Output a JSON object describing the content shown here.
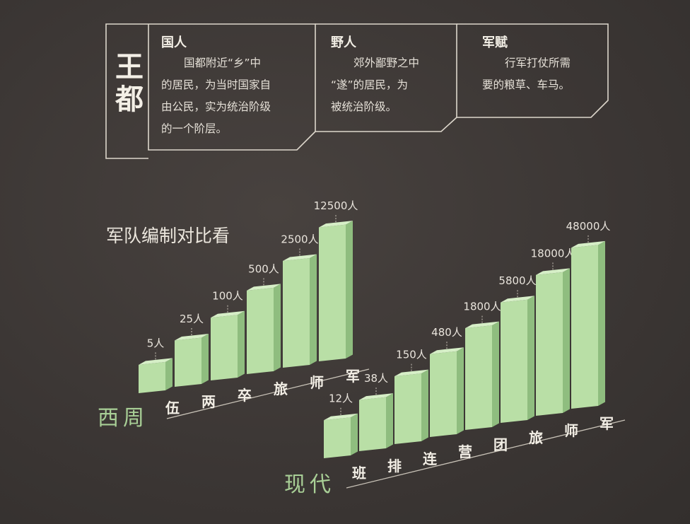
{
  "header": {
    "title_chars": [
      "王",
      "都"
    ],
    "sections": [
      {
        "head": "国人",
        "lines": [
          "国都附近“乡”中",
          "的居民，为当时国家自",
          "由公民，实为统治阶级",
          "的一个阶层。"
        ]
      },
      {
        "head": "野人",
        "lines": [
          "郊外鄙野之中",
          "“遂”的居民，为",
          "被统治阶级。"
        ]
      },
      {
        "head": "军赋",
        "lines": [
          "行军打仗所需",
          "要的粮草、车马。"
        ]
      }
    ]
  },
  "chart_data": [
    {
      "type": "bar",
      "title": "军队编制对比看",
      "series_label": "西周",
      "categories": [
        "伍",
        "两",
        "卒",
        "旅",
        "师",
        "军"
      ],
      "values": [
        5,
        25,
        100,
        500,
        2500,
        12500
      ],
      "value_labels": [
        "5人",
        "25人",
        "100人",
        "500人",
        "2500人",
        "12500人"
      ],
      "unit": "人"
    },
    {
      "type": "bar",
      "series_label": "现代",
      "categories": [
        "班",
        "排",
        "连",
        "营",
        "团",
        "旅",
        "师",
        "军"
      ],
      "values": [
        12,
        38,
        150,
        480,
        1800,
        5800,
        18000,
        48000
      ],
      "value_labels": [
        "12人",
        "38人",
        "150人",
        "480人",
        "1800人",
        "5800人",
        "18000人",
        "48000人"
      ],
      "unit": "人"
    }
  ],
  "colors": {
    "background": "#3b3634",
    "bar_front": "#b9dfa6",
    "bar_side": "#8fbd7f",
    "bar_top": "#d6efc7",
    "line": "#c9c3b8",
    "era_label": "#a8cf96"
  }
}
